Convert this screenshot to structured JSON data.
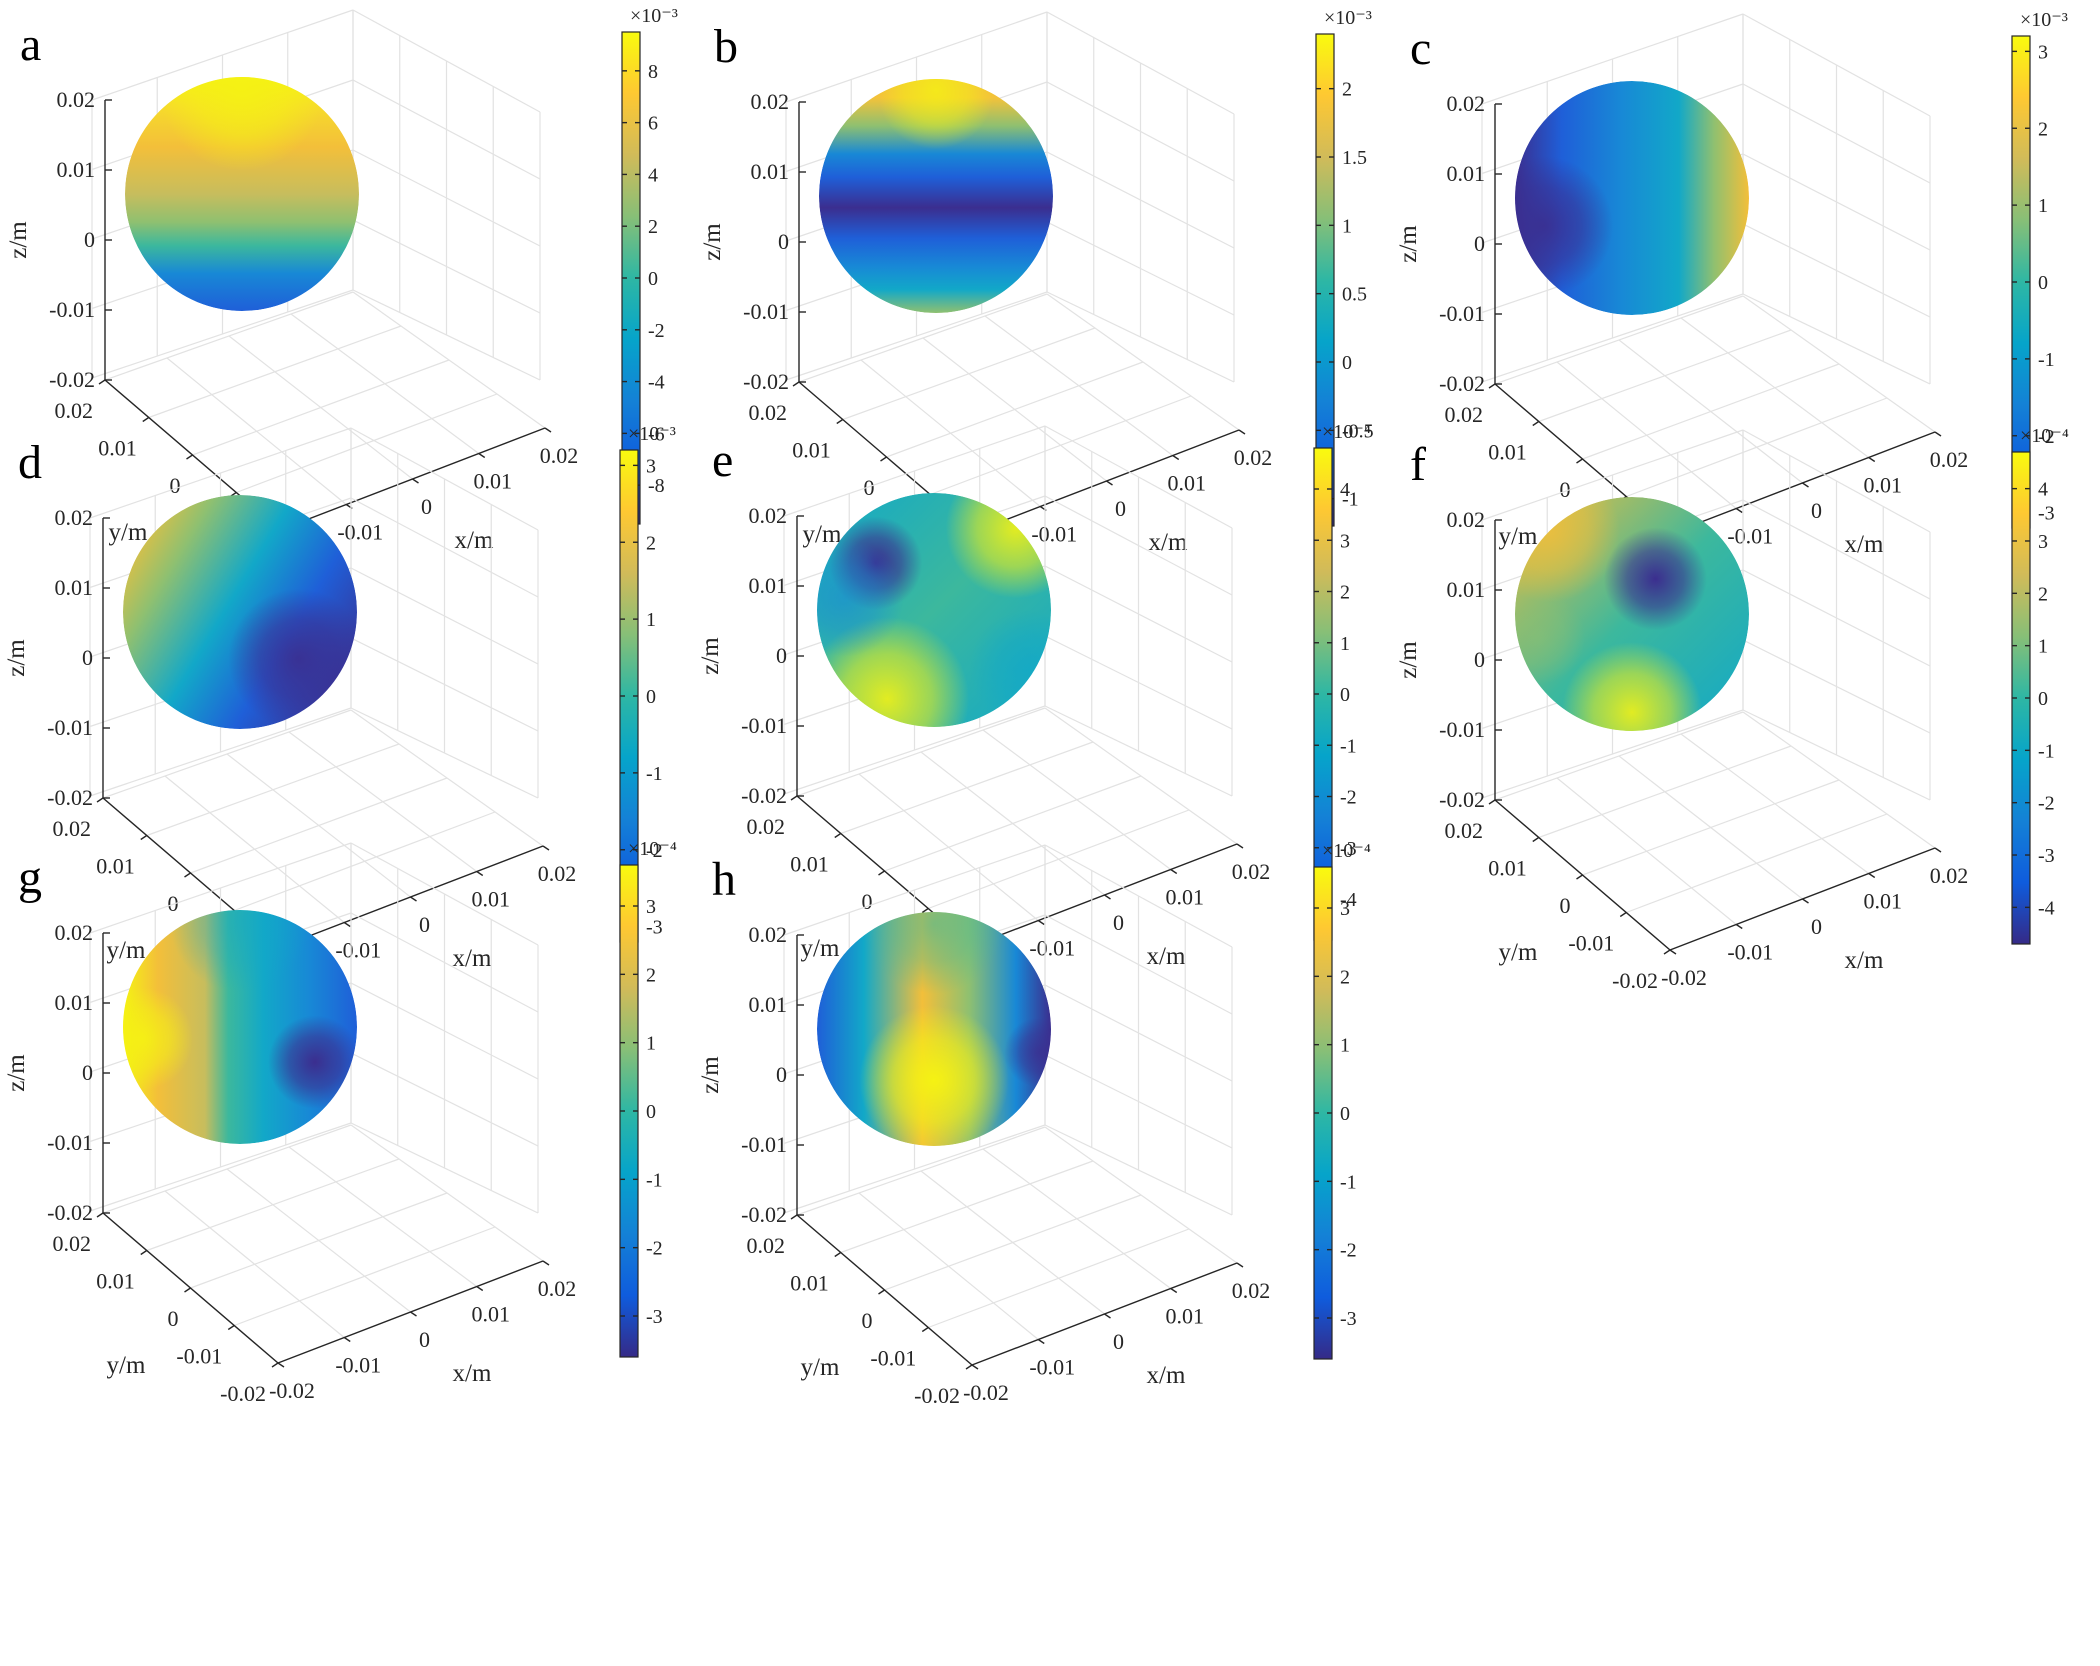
{
  "chart_data": [
    {
      "type": "surface",
      "panel_label": "a",
      "xlabel": "x/m",
      "ylabel": "y/m",
      "zlabel": "z/m",
      "xticks": [
        "-0.02",
        "-0.01",
        "0",
        "0.01",
        "0.02"
      ],
      "yticks": [
        "-0.02",
        "-0.01",
        "0",
        "0.01",
        "0.02"
      ],
      "zticks": [
        "-0.02",
        "-0.01",
        "0",
        "0.01",
        "0.02"
      ],
      "colorbar": {
        "exponent": "×10⁻³",
        "ticks": [
          "-8",
          "-6",
          "-4",
          "-2",
          "0",
          "2",
          "4",
          "6",
          "8"
        ],
        "range": [
          -9.5,
          9.5
        ]
      }
    },
    {
      "type": "surface",
      "panel_label": "b",
      "xlabel": "x/m",
      "ylabel": "y/m",
      "zlabel": "z/m",
      "xticks": [
        "-0.02",
        "-0.01",
        "0",
        "0.01",
        "0.02"
      ],
      "yticks": [
        "-0.02",
        "-0.01",
        "0",
        "0.01",
        "0.02"
      ],
      "zticks": [
        "-0.02",
        "-0.01",
        "0",
        "0.01",
        "0.02"
      ],
      "colorbar": {
        "exponent": "×10⁻³",
        "ticks": [
          "-1",
          "-0.5",
          "0",
          "0.5",
          "1",
          "1.5",
          "2"
        ],
        "range": [
          -1.2,
          2.4
        ]
      }
    },
    {
      "type": "surface",
      "panel_label": "c",
      "xlabel": "x/m",
      "ylabel": "y/m",
      "zlabel": "z/m",
      "xticks": [
        "-0.02",
        "-0.01",
        "0",
        "0.01",
        "0.02"
      ],
      "yticks": [
        "-0.02",
        "-0.01",
        "0",
        "0.01",
        "0.02"
      ],
      "zticks": [
        "-0.02",
        "-0.01",
        "0",
        "0.01",
        "0.02"
      ],
      "colorbar": {
        "exponent": "×10⁻³",
        "ticks": [
          "-3",
          "-2",
          "-1",
          "0",
          "1",
          "2",
          "3"
        ],
        "range": [
          -3.2,
          3.2
        ]
      }
    },
    {
      "type": "surface",
      "panel_label": "d",
      "xlabel": "x/m",
      "ylabel": "y/m",
      "zlabel": "z/m",
      "xticks": [
        "-0.02",
        "-0.01",
        "0",
        "0.01",
        "0.02"
      ],
      "yticks": [
        "-0.02",
        "-0.01",
        "0",
        "0.01",
        "0.02"
      ],
      "zticks": [
        "-0.02",
        "-0.01",
        "0",
        "0.01",
        "0.02"
      ],
      "colorbar": {
        "exponent": "×10⁻³",
        "ticks": [
          "-3",
          "-2",
          "-1",
          "0",
          "1",
          "2",
          "3"
        ],
        "range": [
          -3.2,
          3.2
        ]
      }
    },
    {
      "type": "surface",
      "panel_label": "e",
      "xlabel": "x/m",
      "ylabel": "y/m",
      "zlabel": "z/m",
      "xticks": [
        "-0.02",
        "-0.01",
        "0",
        "0.01",
        "0.02"
      ],
      "yticks": [
        "-0.02",
        "-0.01",
        "0",
        "0.01",
        "0.02"
      ],
      "zticks": [
        "-0.02",
        "-0.01",
        "0",
        "0.01",
        "0.02"
      ],
      "colorbar": {
        "exponent": "×10⁻⁴",
        "ticks": [
          "-4",
          "-3",
          "-2",
          "-1",
          "0",
          "1",
          "2",
          "3",
          "4"
        ],
        "range": [
          -4.8,
          4.8
        ]
      }
    },
    {
      "type": "surface",
      "panel_label": "f",
      "xlabel": "x/m",
      "ylabel": "y/m",
      "zlabel": "z/m",
      "xticks": [
        "-0.02",
        "-0.01",
        "0",
        "0.01",
        "0.02"
      ],
      "yticks": [
        "-0.02",
        "-0.01",
        "0",
        "0.01",
        "0.02"
      ],
      "zticks": [
        "-0.02",
        "-0.01",
        "0",
        "0.01",
        "0.02"
      ],
      "colorbar": {
        "exponent": "×10⁻⁴",
        "ticks": [
          "-4",
          "-3",
          "-2",
          "-1",
          "0",
          "1",
          "2",
          "3",
          "4"
        ],
        "range": [
          -4.7,
          4.7
        ]
      }
    },
    {
      "type": "surface",
      "panel_label": "g",
      "xlabel": "x/m",
      "ylabel": "y/m",
      "zlabel": "z/m",
      "xticks": [
        "-0.02",
        "-0.01",
        "0",
        "0.01",
        "0.02"
      ],
      "yticks": [
        "-0.02",
        "-0.01",
        "0",
        "0.01",
        "0.02"
      ],
      "zticks": [
        "-0.02",
        "-0.01",
        "0",
        "0.01",
        "0.02"
      ],
      "colorbar": {
        "exponent": "×10⁻⁴",
        "ticks": [
          "-3",
          "-2",
          "-1",
          "0",
          "1",
          "2",
          "3"
        ],
        "range": [
          -3.6,
          3.6
        ]
      }
    },
    {
      "type": "surface",
      "panel_label": "h",
      "xlabel": "x/m",
      "ylabel": "y/m",
      "zlabel": "z/m",
      "xticks": [
        "-0.02",
        "-0.01",
        "0",
        "0.01",
        "0.02"
      ],
      "yticks": [
        "-0.02",
        "-0.01",
        "0",
        "0.01",
        "0.02"
      ],
      "zticks": [
        "-0.02",
        "-0.01",
        "0",
        "0.01",
        "0.02"
      ],
      "colorbar": {
        "exponent": "×10⁻⁴",
        "ticks": [
          "-3",
          "-2",
          "-1",
          "0",
          "1",
          "2",
          "3"
        ],
        "range": [
          -3.6,
          3.6
        ]
      }
    }
  ]
}
